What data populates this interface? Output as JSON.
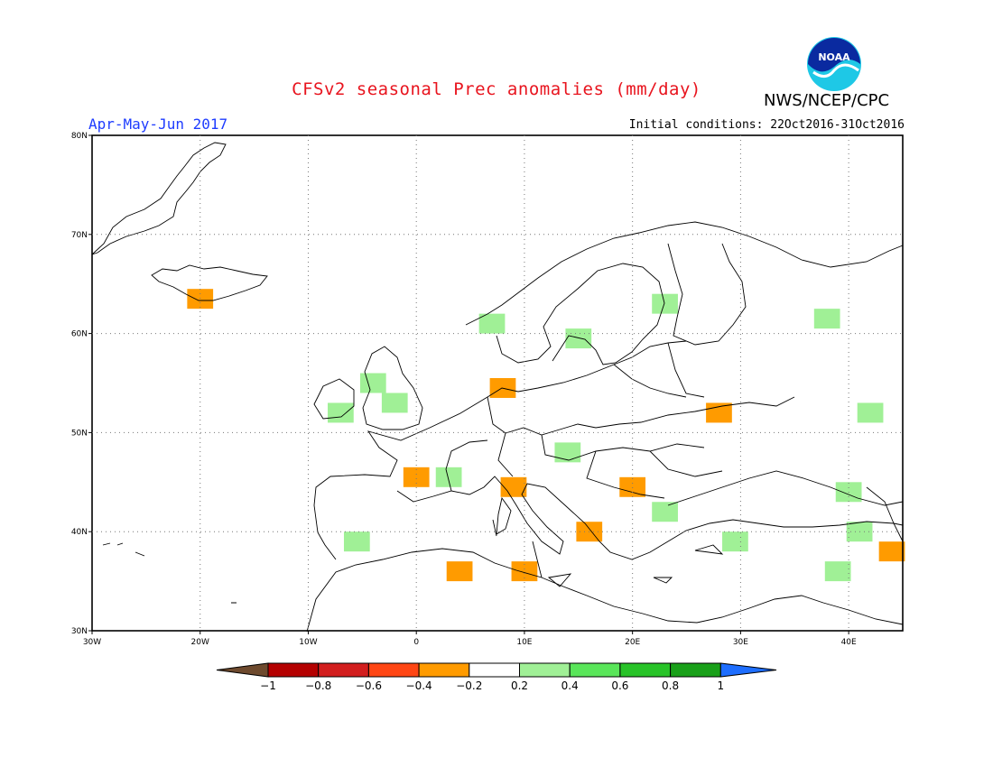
{
  "header": {
    "title": "CFSv2 seasonal Prec anomalies (mm/day)",
    "period": "Apr-May-Jun 2017",
    "initial_conditions": "Initial conditions: 22Oct2016-31Oct2016",
    "agency": "NWS/NCEP/CPC",
    "logo_text": "NOAA"
  },
  "map": {
    "lon_range": [
      -30,
      45
    ],
    "lat_range": [
      30,
      80
    ],
    "lon_tick_labels": [
      "30W",
      "20W",
      "10W",
      "0",
      "10E",
      "20E",
      "30E",
      "40E"
    ],
    "lat_tick_labels": [
      "30N",
      "40N",
      "50N",
      "60N",
      "70N",
      "80N"
    ],
    "grid": "dotted",
    "anomaly_cells": [
      {
        "lon": -20,
        "lat": 63.5,
        "class": "-0.4"
      },
      {
        "lon": -7,
        "lat": 52,
        "class": "0.2"
      },
      {
        "lon": -4,
        "lat": 55,
        "class": "0.2"
      },
      {
        "lon": -2,
        "lat": 53,
        "class": "0.2"
      },
      {
        "lon": 7,
        "lat": 61,
        "class": "0.2"
      },
      {
        "lon": 15,
        "lat": 59.5,
        "class": "0.2"
      },
      {
        "lon": 23,
        "lat": 63,
        "class": "0.2"
      },
      {
        "lon": 38,
        "lat": 61.5,
        "class": "0.2"
      },
      {
        "lon": 42,
        "lat": 52,
        "class": "0.2"
      },
      {
        "lon": 8,
        "lat": 54.5,
        "class": "-0.4"
      },
      {
        "lon": 28,
        "lat": 52,
        "class": "-0.4"
      },
      {
        "lon": 0,
        "lat": 45.5,
        "class": "-0.4"
      },
      {
        "lon": 9,
        "lat": 44.5,
        "class": "-0.4"
      },
      {
        "lon": 20,
        "lat": 44.5,
        "class": "-0.4"
      },
      {
        "lon": 14,
        "lat": 48,
        "class": "0.2"
      },
      {
        "lon": 3,
        "lat": 45.5,
        "class": "0.2"
      },
      {
        "lon": -5.5,
        "lat": 39,
        "class": "0.2"
      },
      {
        "lon": 23,
        "lat": 42,
        "class": "0.2"
      },
      {
        "lon": 29.5,
        "lat": 39,
        "class": "0.2"
      },
      {
        "lon": 40,
        "lat": 44,
        "class": "0.2"
      },
      {
        "lon": 41,
        "lat": 40,
        "class": "0.2"
      },
      {
        "lon": 39,
        "lat": 36,
        "class": "0.2"
      },
      {
        "lon": 4,
        "lat": 36,
        "class": "-0.4"
      },
      {
        "lon": 10,
        "lat": 36,
        "class": "-0.4"
      },
      {
        "lon": 16,
        "lat": 40,
        "class": "-0.4"
      },
      {
        "lon": 44,
        "lat": 38,
        "class": "-0.4"
      }
    ]
  },
  "colorbar": {
    "tick_labels": [
      "−1",
      "−0.8",
      "−0.6",
      "−0.4",
      "−0.2",
      "0.2",
      "0.4",
      "0.6",
      "0.8",
      "1"
    ],
    "colors": [
      "#6e4a2e",
      "#b40000",
      "#d21e1e",
      "#ff4614",
      "#ff9b00",
      "#ffffff",
      "#a0f096",
      "#5ae65a",
      "#28c328",
      "#19a019",
      "#1e6eff"
    ]
  }
}
